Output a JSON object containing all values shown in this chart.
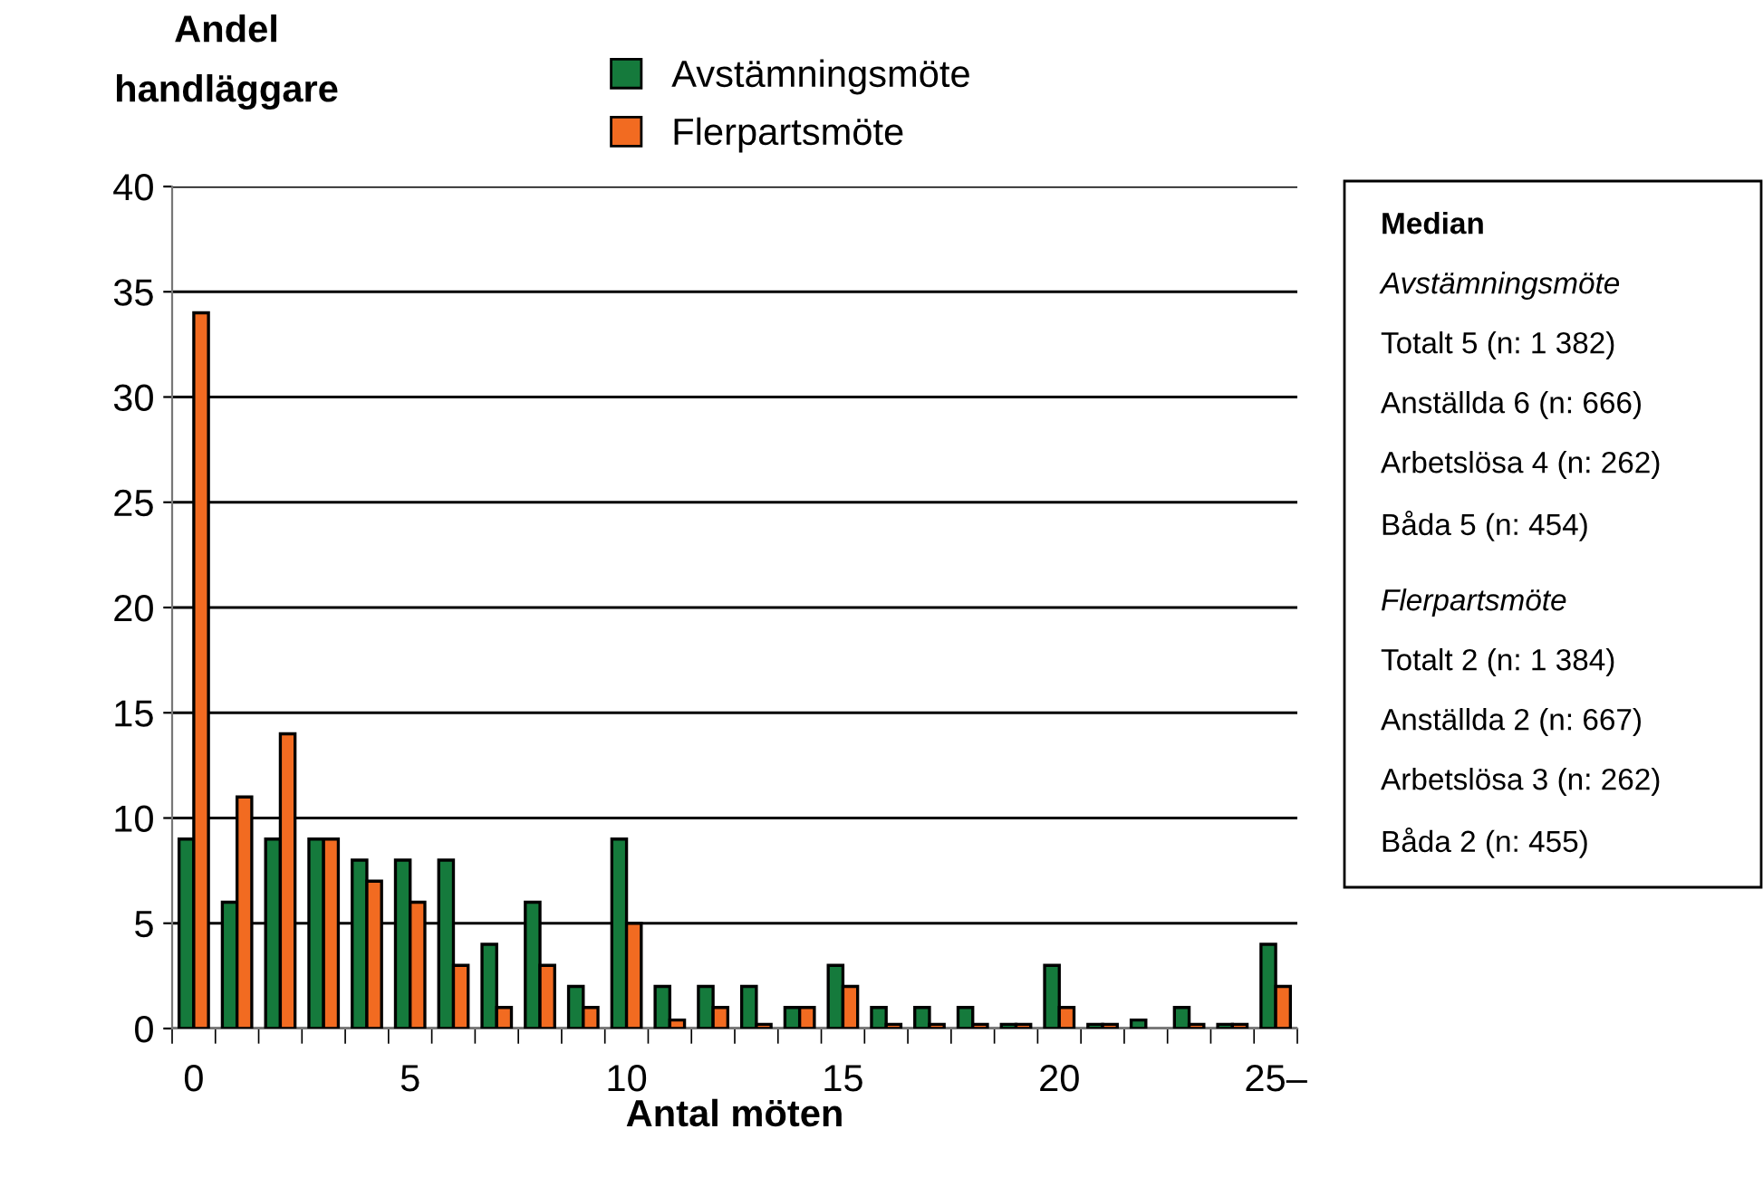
{
  "chart_data": {
    "type": "bar",
    "ylabel": "Andel\nhandläggare",
    "xlabel": "Antal möten",
    "categories": [
      "0",
      null,
      null,
      null,
      null,
      "5",
      null,
      null,
      null,
      null,
      "10",
      null,
      null,
      null,
      null,
      "15",
      null,
      null,
      null,
      null,
      "20",
      null,
      null,
      null,
      null,
      "25–"
    ],
    "series": [
      {
        "name": "Avstämningsmöte",
        "color": "#157a3c",
        "values": [
          9,
          6,
          9,
          9,
          8,
          8,
          8,
          4,
          6,
          2,
          9,
          2,
          2,
          2,
          1,
          3,
          1,
          1,
          1,
          0.2,
          3,
          0.2,
          0.4,
          1,
          0.2,
          4
        ]
      },
      {
        "name": "Flerpartsmöte",
        "color": "#f26b21",
        "values": [
          34,
          11,
          14,
          9,
          7,
          6,
          3,
          1,
          3,
          1,
          5,
          0.4,
          1,
          0.2,
          1,
          2,
          0.2,
          0.2,
          0.2,
          0.2,
          1,
          0.2,
          null,
          0.2,
          0.2,
          2
        ]
      }
    ],
    "ylim": [
      0,
      40
    ],
    "yticks": [
      0,
      5,
      10,
      15,
      20,
      25,
      30,
      35,
      40
    ],
    "grid": "y",
    "legend": "top",
    "annotations": [
      "Median",
      "Avstämningsmöte",
      "Totalt 5 (n: 1 382)",
      "Anställda 6 (n: 666)",
      "Arbetslösa 4 (n: 262)",
      "Båda 5 (n: 454)",
      "Flerpartsmöte",
      "Totalt 2 (n: 1 384)",
      "Anställda 2 (n: 667)",
      "Arbetslösa 3 (n: 262)",
      "Båda 2 (n: 455)"
    ]
  }
}
